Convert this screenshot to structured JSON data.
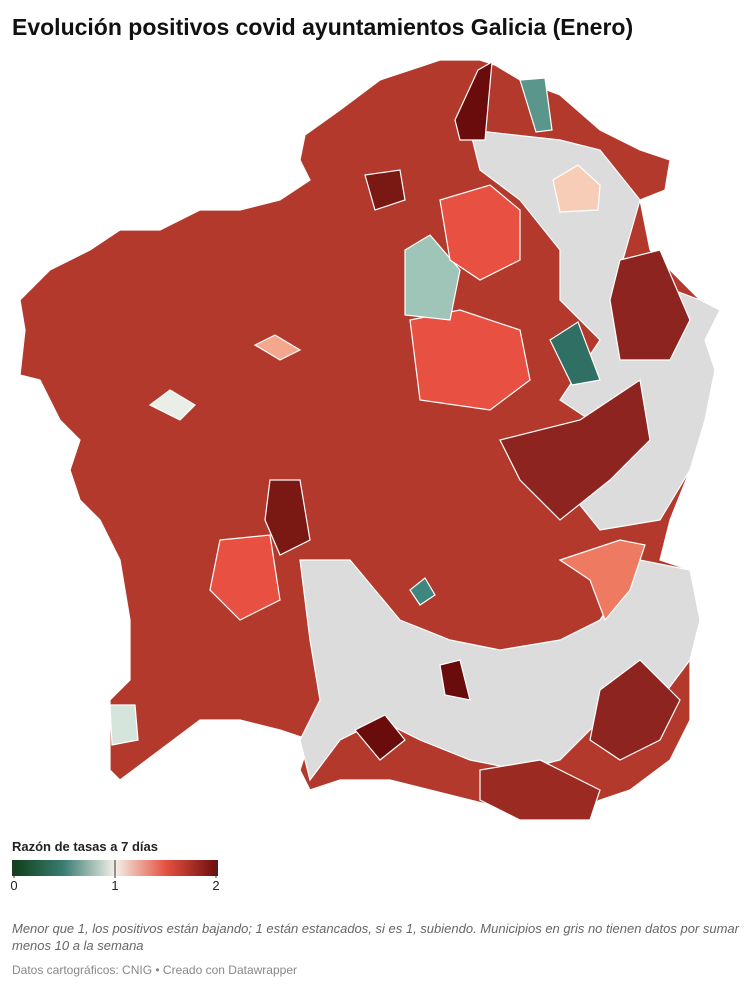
{
  "header": {
    "title": "Evolución positivos covid ayuntamientos Galicia (Enero)"
  },
  "legend": {
    "title": "Razón de tasas a 7 días",
    "range": [
      0,
      2
    ],
    "ticks": [
      0,
      1,
      2
    ],
    "colors": [
      "#0f3d16",
      "#3a7d72",
      "#f3f0e8",
      "#e4503f",
      "#6b0c0c"
    ]
  },
  "note": "Menor que 1, los positivos están bajando; 1 están estancados, si es 1, subiendo. Municipios en gris no tienen datos por sumar menos 10 a la semana",
  "source": "Datos cartográficos: CNIG • Creado con Datawrapper"
}
